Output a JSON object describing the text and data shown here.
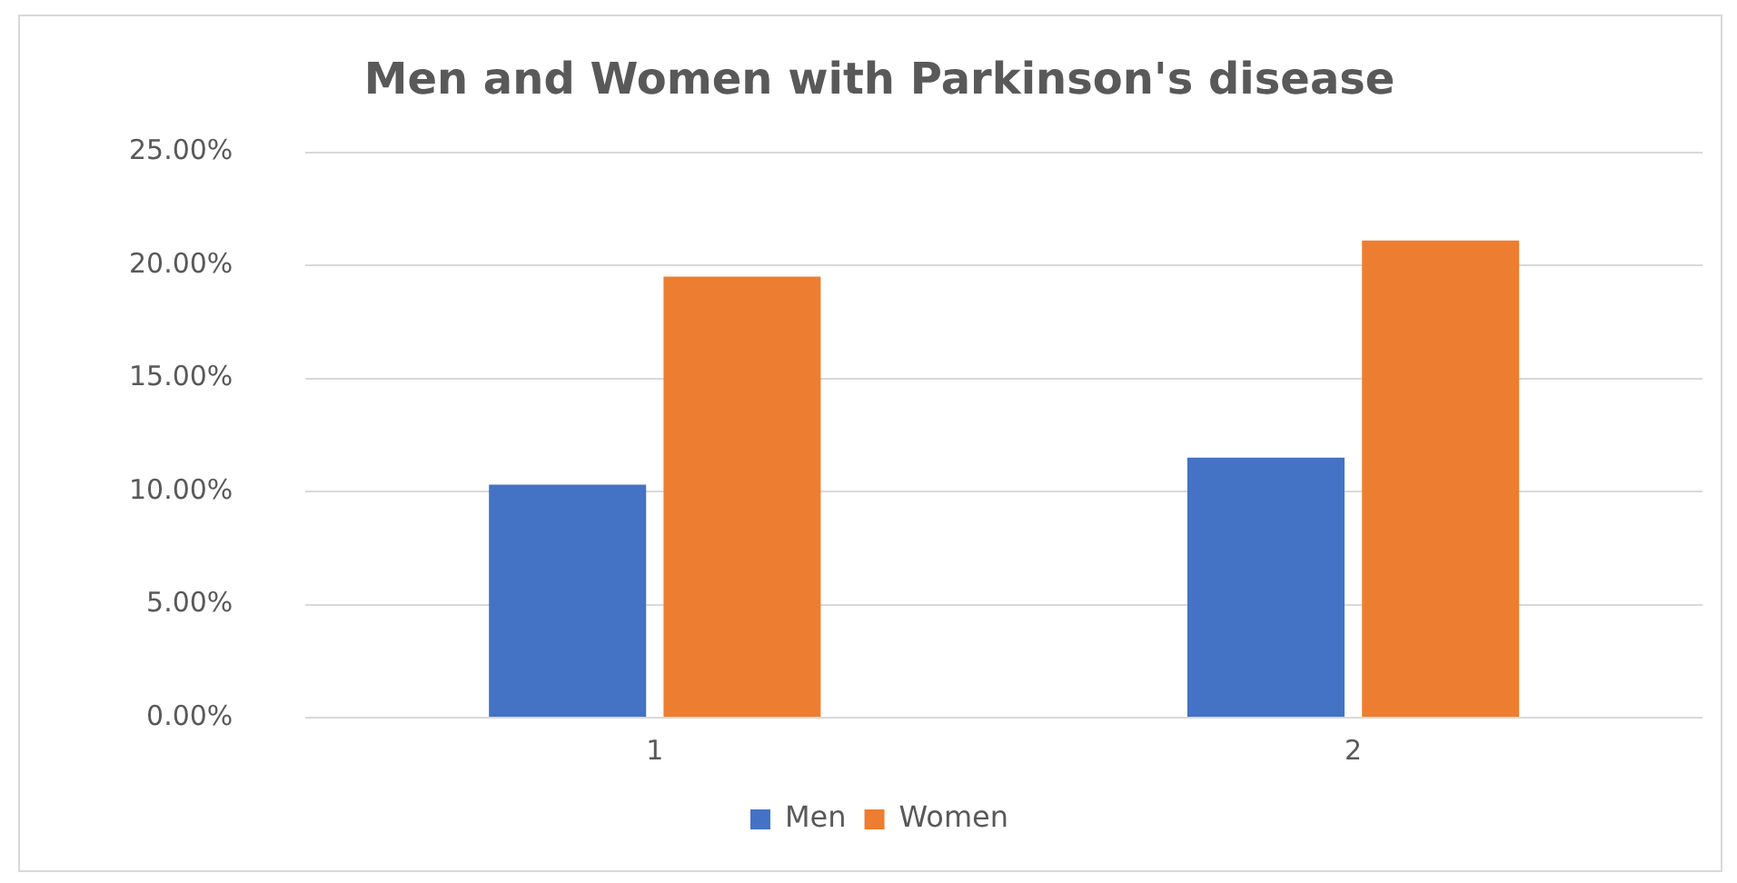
{
  "chart_data": {
    "type": "bar",
    "title": "Men and Women with Parkinson's disease",
    "categories": [
      "1",
      "2"
    ],
    "series": [
      {
        "name": "Men",
        "color": "#4472c4",
        "values": [
          10.3,
          11.5
        ]
      },
      {
        "name": "Women",
        "color": "#ed7d31",
        "values": [
          19.5,
          21.1
        ]
      }
    ],
    "ylim": [
      0,
      25
    ],
    "yticks": [
      {
        "value": 0,
        "label": "0.00%"
      },
      {
        "value": 5,
        "label": "5.00%"
      },
      {
        "value": 10,
        "label": "10.00%"
      },
      {
        "value": 15,
        "label": "15.00%"
      },
      {
        "value": 20,
        "label": "20.00%"
      },
      {
        "value": 25,
        "label": "25.00%"
      }
    ],
    "grid": "y",
    "legend": "bottom"
  }
}
